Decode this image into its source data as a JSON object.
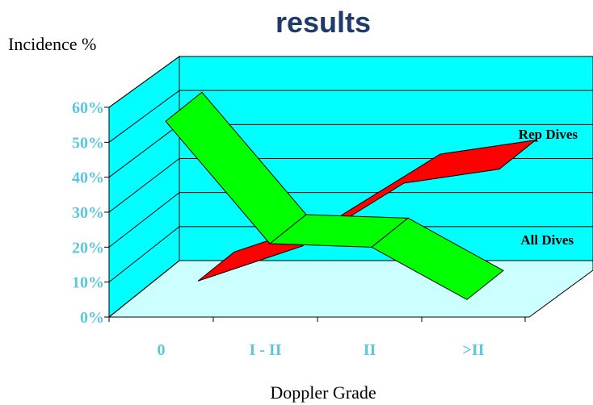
{
  "chart_data": {
    "type": "line",
    "title": "results",
    "ylabel": "Incidence %",
    "xlabel": "Doppler Grade",
    "categories": [
      "0",
      "I - II",
      "II",
      ">II"
    ],
    "y_ticks": [
      "0%",
      "10%",
      "20%",
      "30%",
      "40%",
      "50%",
      "60%"
    ],
    "ylim": [
      0,
      60
    ],
    "series": [
      {
        "name": "Rep Dives",
        "values": [
          8,
          18,
          36,
          40
        ]
      },
      {
        "name": "All Dives",
        "values": [
          56,
          21,
          20,
          5
        ]
      }
    ],
    "grid": true,
    "style": "3d-ribbon"
  },
  "colors": {
    "wall": "#00ffff",
    "floor": "#ccffff",
    "rep_dives": "#ff0000",
    "all_dives": "#00ff00",
    "tick_text": "#5cc6dc",
    "title": "#1f3b6e"
  }
}
